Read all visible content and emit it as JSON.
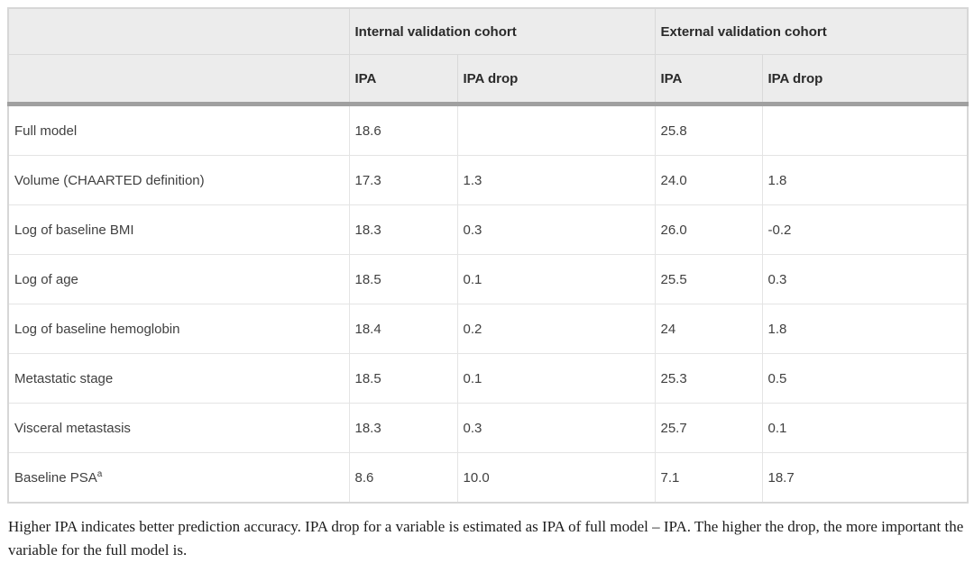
{
  "table": {
    "header": {
      "groups": [
        {
          "label": "Internal validation cohort",
          "columns": [
            "IPA",
            "IPA drop"
          ]
        },
        {
          "label": "External validation cohort",
          "columns": [
            "IPA",
            "IPA drop"
          ]
        }
      ]
    },
    "rows": [
      {
        "label": "Full model",
        "internal_ipa": "18.6",
        "internal_ipa_drop": "",
        "external_ipa": "25.8",
        "external_ipa_drop": ""
      },
      {
        "label": "Volume (CHAARTED definition)",
        "internal_ipa": "17.3",
        "internal_ipa_drop": "1.3",
        "external_ipa": "24.0",
        "external_ipa_drop": "1.8"
      },
      {
        "label": "Log of baseline BMI",
        "internal_ipa": "18.3",
        "internal_ipa_drop": "0.3",
        "external_ipa": "26.0",
        "external_ipa_drop": "-0.2"
      },
      {
        "label": "Log of age",
        "internal_ipa": "18.5",
        "internal_ipa_drop": "0.1",
        "external_ipa": "25.5",
        "external_ipa_drop": "0.3"
      },
      {
        "label": "Log of baseline hemoglobin",
        "internal_ipa": "18.4",
        "internal_ipa_drop": "0.2",
        "external_ipa": "24",
        "external_ipa_drop": "1.8"
      },
      {
        "label": "Metastatic stage",
        "internal_ipa": "18.5",
        "internal_ipa_drop": "0.1",
        "external_ipa": "25.3",
        "external_ipa_drop": "0.5"
      },
      {
        "label": "Visceral metastasis",
        "internal_ipa": "18.3",
        "internal_ipa_drop": "0.3",
        "external_ipa": "25.7",
        "external_ipa_drop": "0.1"
      },
      {
        "label": "Baseline PSA",
        "label_superscript": "a",
        "internal_ipa": "8.6",
        "internal_ipa_drop": "10.0",
        "external_ipa": "7.1",
        "external_ipa_drop": "18.7"
      }
    ]
  },
  "footnote": "Higher IPA indicates better prediction accuracy. IPA drop for a variable is estimated as IPA of full model – IPA. The higher the drop, the more important the variable for the full model is.",
  "colors": {
    "header_background": "#ececec",
    "thick_divider": "#a0a0a0",
    "header_border": "#d9d9d9",
    "body_border": "#e4e4e4",
    "outer_border": "#d7d7d7",
    "header_text": "#2a2a2a",
    "body_text": "#404040",
    "footnote_text": "#1d1d1d"
  }
}
